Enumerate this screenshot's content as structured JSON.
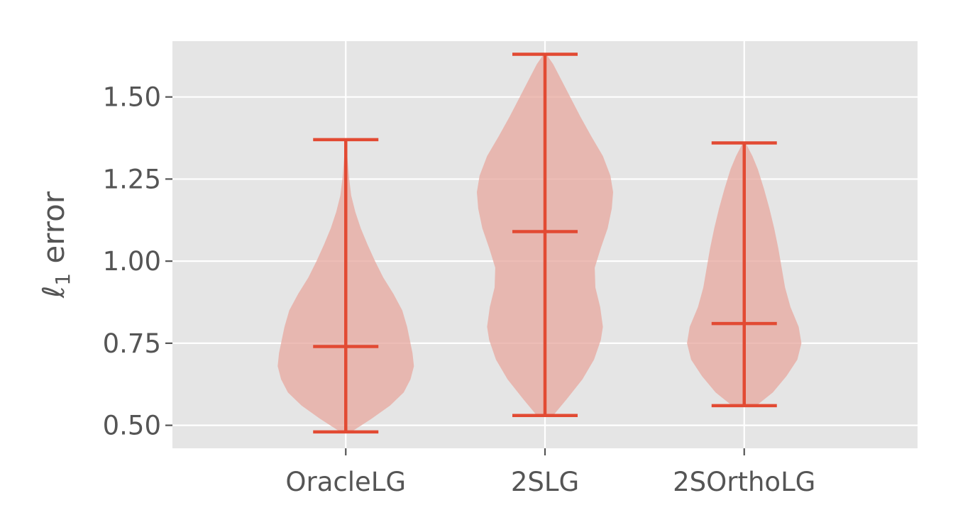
{
  "chart_data": {
    "type": "violin",
    "title": "",
    "xlabel": "",
    "ylabel": "ℓ1 error",
    "ylabel_main": "ℓ",
    "ylabel_sub": "1",
    "ylabel_rest": " error",
    "ylim": [
      0.43,
      1.67
    ],
    "yticks": [
      0.5,
      0.75,
      1.0,
      1.25,
      1.5
    ],
    "ytick_labels": [
      "0.50",
      "0.75",
      "1.00",
      "1.25",
      "1.50"
    ],
    "grid": true,
    "categories": [
      "OracleLG",
      "2SLG",
      "2SOrthoLG"
    ],
    "series": [
      {
        "min": 0.48,
        "median": 0.74,
        "max": 1.37,
        "density": [
          [
            0.48,
            0.08
          ],
          [
            0.52,
            0.38
          ],
          [
            0.56,
            0.65
          ],
          [
            0.6,
            0.85
          ],
          [
            0.64,
            0.95
          ],
          [
            0.68,
            1.0
          ],
          [
            0.72,
            0.98
          ],
          [
            0.76,
            0.94
          ],
          [
            0.8,
            0.9
          ],
          [
            0.85,
            0.83
          ],
          [
            0.9,
            0.7
          ],
          [
            0.95,
            0.55
          ],
          [
            1.0,
            0.43
          ],
          [
            1.05,
            0.32
          ],
          [
            1.1,
            0.22
          ],
          [
            1.15,
            0.14
          ],
          [
            1.2,
            0.08
          ],
          [
            1.25,
            0.05
          ],
          [
            1.3,
            0.03
          ],
          [
            1.37,
            0.005
          ]
        ]
      },
      {
        "min": 0.53,
        "median": 1.09,
        "max": 1.63,
        "density": [
          [
            0.53,
            0.12
          ],
          [
            0.58,
            0.32
          ],
          [
            0.64,
            0.55
          ],
          [
            0.7,
            0.72
          ],
          [
            0.76,
            0.82
          ],
          [
            0.8,
            0.85
          ],
          [
            0.86,
            0.81
          ],
          [
            0.92,
            0.74
          ],
          [
            0.98,
            0.73
          ],
          [
            1.04,
            0.82
          ],
          [
            1.1,
            0.92
          ],
          [
            1.16,
            0.98
          ],
          [
            1.21,
            1.0
          ],
          [
            1.26,
            0.96
          ],
          [
            1.32,
            0.85
          ],
          [
            1.38,
            0.68
          ],
          [
            1.44,
            0.52
          ],
          [
            1.5,
            0.37
          ],
          [
            1.56,
            0.22
          ],
          [
            1.6,
            0.12
          ],
          [
            1.63,
            0.02
          ]
        ]
      },
      {
        "min": 0.56,
        "median": 0.81,
        "max": 1.36,
        "density": [
          [
            0.56,
            0.18
          ],
          [
            0.6,
            0.42
          ],
          [
            0.65,
            0.62
          ],
          [
            0.7,
            0.78
          ],
          [
            0.75,
            0.84
          ],
          [
            0.8,
            0.8
          ],
          [
            0.86,
            0.68
          ],
          [
            0.92,
            0.6
          ],
          [
            0.98,
            0.55
          ],
          [
            1.04,
            0.5
          ],
          [
            1.1,
            0.44
          ],
          [
            1.16,
            0.37
          ],
          [
            1.22,
            0.29
          ],
          [
            1.28,
            0.2
          ],
          [
            1.32,
            0.12
          ],
          [
            1.36,
            0.02
          ]
        ]
      }
    ],
    "colors": {
      "background": "#ffffff",
      "plot_area": "#e5e5e5",
      "grid": "#ffffff",
      "body_fill": "#e8aba2",
      "line": "#e24a33",
      "text": "#555555"
    }
  }
}
